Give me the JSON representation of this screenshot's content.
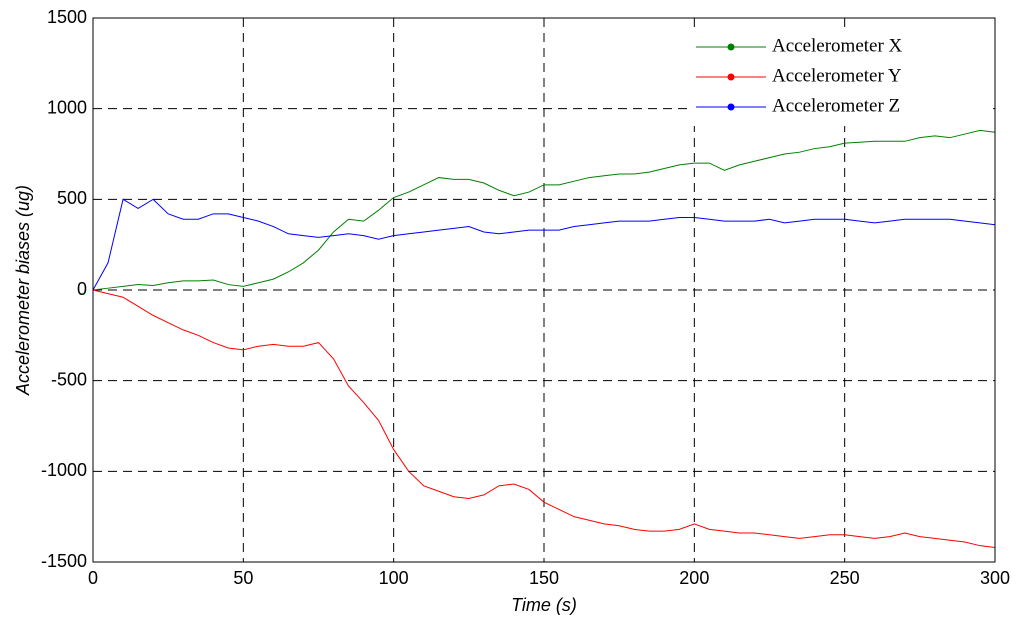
{
  "chart_data": {
    "type": "line",
    "xlabel": "Time (s)",
    "ylabel": "Accelerometer biases (ug)",
    "x": [
      0,
      5,
      10,
      15,
      20,
      25,
      30,
      35,
      40,
      45,
      50,
      55,
      60,
      65,
      70,
      75,
      80,
      85,
      90,
      95,
      100,
      105,
      110,
      115,
      120,
      125,
      130,
      135,
      140,
      145,
      150,
      155,
      160,
      165,
      170,
      175,
      180,
      185,
      190,
      195,
      200,
      205,
      210,
      215,
      220,
      225,
      230,
      235,
      240,
      245,
      250,
      255,
      260,
      265,
      270,
      275,
      280,
      285,
      290,
      295,
      300
    ],
    "series": [
      {
        "name": "Accelerometer X",
        "color": "#008000",
        "values": [
          0,
          10,
          20,
          30,
          25,
          40,
          50,
          50,
          55,
          30,
          20,
          40,
          60,
          100,
          150,
          220,
          320,
          390,
          380,
          440,
          510,
          540,
          580,
          620,
          610,
          610,
          590,
          550,
          520,
          540,
          580,
          580,
          600,
          620,
          630,
          640,
          640,
          650,
          670,
          690,
          700,
          700,
          660,
          690,
          710,
          730,
          750,
          760,
          780,
          790,
          810,
          815,
          820,
          820,
          820,
          840,
          850,
          840,
          860,
          880,
          870
        ]
      },
      {
        "name": "Accelerometer Y",
        "color": "#ff0000",
        "values": [
          0,
          -20,
          -40,
          -90,
          -140,
          -180,
          -220,
          -250,
          -290,
          -320,
          -330,
          -310,
          -300,
          -310,
          -310,
          -290,
          -380,
          -530,
          -620,
          -720,
          -880,
          -1000,
          -1080,
          -1110,
          -1140,
          -1150,
          -1130,
          -1080,
          -1070,
          -1100,
          -1170,
          -1210,
          -1250,
          -1270,
          -1290,
          -1300,
          -1320,
          -1330,
          -1330,
          -1320,
          -1290,
          -1320,
          -1330,
          -1340,
          -1340,
          -1350,
          -1360,
          -1370,
          -1360,
          -1350,
          -1350,
          -1360,
          -1370,
          -1360,
          -1340,
          -1360,
          -1370,
          -1380,
          -1390,
          -1410,
          -1420
        ]
      },
      {
        "name": "Accelerometer Z",
        "color": "#0000ff",
        "values": [
          0,
          150,
          500,
          450,
          500,
          420,
          390,
          390,
          420,
          420,
          400,
          380,
          350,
          310,
          300,
          290,
          300,
          310,
          300,
          280,
          300,
          310,
          320,
          330,
          340,
          350,
          320,
          310,
          320,
          330,
          330,
          330,
          350,
          360,
          370,
          380,
          380,
          380,
          390,
          400,
          400,
          390,
          380,
          380,
          380,
          390,
          370,
          380,
          390,
          390,
          390,
          380,
          370,
          380,
          390,
          390,
          390,
          390,
          380,
          370,
          360
        ]
      }
    ],
    "xlim": [
      0,
      300
    ],
    "xticks": [
      0,
      50,
      100,
      150,
      200,
      250,
      300
    ],
    "ylim": [
      -1500,
      1500
    ],
    "yticks": [
      -1500,
      -1000,
      -500,
      0,
      500,
      1000,
      1500
    ],
    "grid": true,
    "legend": "upper right"
  }
}
